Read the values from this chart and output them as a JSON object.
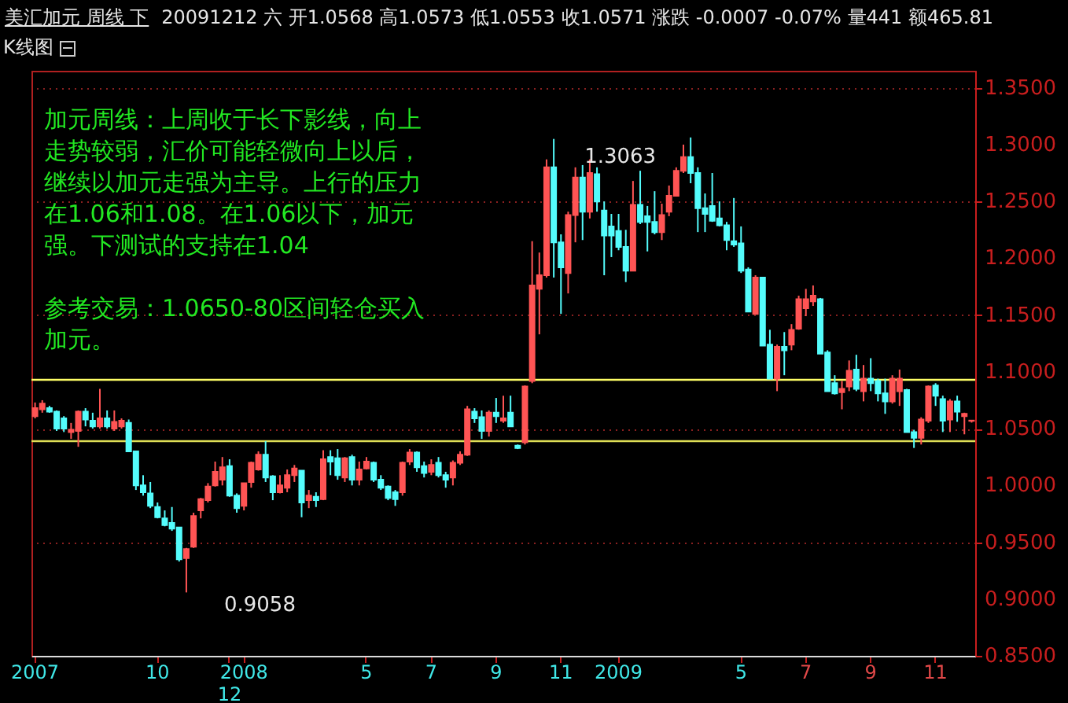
{
  "chart_data": {
    "type": "candlestick",
    "title": "美汇加元 周线 下",
    "subtitle": "20091212 六 开1.0568 高1.0573 低1.0553 收1.0571 涨跌 -0.0007 -0.07% 量441 额465.81",
    "annotations": [
      "K线图",
      "加元周线：上周收于长下影线，向上走势较弱，汇价可能轻微向上以后，继续以加元走强为主导。上行的压力在1.06和1.08。在1.06以下，加元强。下测试的支持在1.04",
      "参考交易：1.0650-80区间轻仓买入加元。",
      "1.3063",
      "0.9058"
    ],
    "categories": [
      "2007",
      null,
      null,
      null,
      null,
      null,
      null,
      null,
      null,
      null,
      null,
      null,
      null,
      null,
      null,
      null,
      null,
      "10",
      null,
      null,
      null,
      null,
      null,
      null,
      null,
      null,
      null,
      "12",
      null,
      "2008",
      null,
      null,
      null,
      null,
      null,
      null,
      null,
      null,
      null,
      null,
      null,
      null,
      null,
      null,
      null,
      null,
      "5",
      null,
      null,
      null,
      null,
      null,
      null,
      null,
      null,
      "7",
      null,
      null,
      null,
      null,
      null,
      null,
      null,
      null,
      "9",
      null,
      null,
      null,
      null,
      null,
      null,
      null,
      null,
      "11",
      null,
      null,
      null,
      null,
      null,
      null,
      null,
      "2009",
      null,
      null,
      null,
      null,
      null,
      null,
      null,
      null,
      null,
      null,
      null,
      null,
      null,
      null,
      null,
      null,
      "5",
      null,
      null,
      null,
      null,
      null,
      null,
      null,
      null,
      "7",
      null,
      null,
      null,
      null,
      null,
      null,
      null,
      null,
      "9",
      null,
      null,
      null,
      null,
      null,
      null,
      null,
      null,
      "11",
      null,
      null,
      null,
      null,
      null
    ],
    "ohlc": [
      [
        1.061,
        1.073,
        1.059,
        1.068
      ],
      [
        1.067,
        1.075,
        1.064,
        1.072
      ],
      [
        1.068,
        1.07,
        1.064,
        1.065
      ],
      [
        1.065,
        1.066,
        1.048,
        1.05
      ],
      [
        1.059,
        1.061,
        1.047,
        1.05
      ],
      [
        1.047,
        1.055,
        1.041,
        1.049
      ],
      [
        1.048,
        1.066,
        1.034,
        1.065
      ],
      [
        1.065,
        1.068,
        1.052,
        1.058
      ],
      [
        1.057,
        1.064,
        1.05,
        1.052
      ],
      [
        1.052,
        1.085,
        1.05,
        1.059
      ],
      [
        1.059,
        1.066,
        1.05,
        1.052
      ],
      [
        1.05,
        1.066,
        1.048,
        1.056
      ],
      [
        1.052,
        1.059,
        1.05,
        1.057
      ],
      [
        1.055,
        1.058,
        1.03,
        1.03
      ],
      [
        1.03,
        1.03,
        0.996,
        1.0
      ],
      [
        1.0,
        1.009,
        0.991,
        0.994
      ],
      [
        0.993,
        1.003,
        0.98,
        0.982
      ],
      [
        0.981,
        0.985,
        0.971,
        0.972
      ],
      [
        0.971,
        0.978,
        0.964,
        0.965
      ],
      [
        0.967,
        0.981,
        0.96,
        0.962
      ],
      [
        0.963,
        0.963,
        0.933,
        0.935
      ],
      [
        0.936,
        0.945,
        0.9058,
        0.944
      ],
      [
        0.946,
        0.976,
        0.945,
        0.973
      ],
      [
        0.978,
        0.989,
        0.971,
        0.988
      ],
      [
        0.987,
        1.002,
        0.985,
        0.999
      ],
      [
        1.0,
        1.021,
        0.999,
        1.012
      ],
      [
        1.005,
        1.025,
        1.0,
        1.016
      ],
      [
        1.017,
        1.023,
        0.99,
        0.991
      ],
      [
        0.991,
        0.993,
        0.976,
        0.98
      ],
      [
        0.982,
        1.002,
        0.978,
        1.002
      ],
      [
        1.003,
        1.021,
        0.998,
        1.02
      ],
      [
        1.014,
        1.03,
        1.013,
        1.027
      ],
      [
        1.027,
        1.039,
        1.003,
        1.007
      ],
      [
        1.008,
        1.009,
        0.987,
        0.994
      ],
      [
        0.994,
        1.009,
        0.993,
        1.0
      ],
      [
        0.998,
        1.014,
        0.994,
        1.009
      ],
      [
        1.009,
        1.018,
        1.003,
        1.015
      ],
      [
        1.013,
        1.013,
        0.972,
        0.985
      ],
      [
        0.987,
        0.996,
        0.98,
        0.991
      ],
      [
        0.99,
        0.994,
        0.981,
        0.987
      ],
      [
        0.988,
        1.031,
        0.987,
        1.023
      ],
      [
        1.025,
        1.031,
        1.009,
        1.021
      ],
      [
        1.024,
        1.032,
        1.005,
        1.009
      ],
      [
        1.007,
        1.025,
        1.003,
        1.024
      ],
      [
        1.025,
        1.027,
        1.0,
        1.005
      ],
      [
        1.005,
        1.021,
        1.0,
        1.014
      ],
      [
        1.015,
        1.025,
        1.014,
        1.021
      ],
      [
        1.02,
        1.021,
        1.003,
        1.005
      ],
      [
        1.005,
        1.009,
        0.996,
        0.998
      ],
      [
        0.999,
        1.0,
        0.987,
        0.989
      ],
      [
        0.994,
        0.996,
        0.982,
        0.988
      ],
      [
        0.994,
        1.021,
        0.991,
        1.02
      ],
      [
        1.021,
        1.032,
        1.018,
        1.029
      ],
      [
        1.029,
        1.03,
        1.012,
        1.016
      ],
      [
        1.017,
        1.021,
        1.007,
        1.011
      ],
      [
        1.012,
        1.023,
        1.009,
        1.018
      ],
      [
        1.02,
        1.025,
        1.007,
        1.009
      ],
      [
        1.009,
        1.012,
        0.998,
        1.005
      ],
      [
        1.007,
        1.022,
        1.0,
        1.02
      ],
      [
        1.02,
        1.03,
        1.018,
        1.027
      ],
      [
        1.027,
        1.07,
        1.026,
        1.067
      ],
      [
        1.065,
        1.068,
        1.055,
        1.059
      ],
      [
        1.06,
        1.066,
        1.041,
        1.048
      ],
      [
        1.048,
        1.066,
        1.043,
        1.064
      ],
      [
        1.064,
        1.077,
        1.055,
        1.061
      ],
      [
        1.057,
        1.079,
        1.055,
        1.059
      ],
      [
        1.064,
        1.079,
        1.052,
        1.052
      ],
      [
        1.035,
        1.036,
        1.032,
        1.033
      ],
      [
        1.038,
        1.088,
        1.036,
        1.087
      ],
      [
        1.092,
        1.215,
        1.09,
        1.176
      ],
      [
        1.173,
        1.205,
        1.133,
        1.185
      ],
      [
        1.185,
        1.287,
        1.183,
        1.28
      ],
      [
        1.28,
        1.305,
        1.183,
        1.214
      ],
      [
        1.214,
        1.221,
        1.151,
        1.192
      ],
      [
        1.187,
        1.241,
        1.169,
        1.238
      ],
      [
        1.238,
        1.28,
        1.214,
        1.271
      ],
      [
        1.271,
        1.282,
        1.216,
        1.241
      ],
      [
        1.241,
        1.287,
        1.235,
        1.275
      ],
      [
        1.274,
        1.28,
        1.241,
        1.25
      ],
      [
        1.242,
        1.25,
        1.185,
        1.22
      ],
      [
        1.228,
        1.239,
        1.201,
        1.22
      ],
      [
        1.224,
        1.239,
        1.207,
        1.21
      ],
      [
        1.21,
        1.225,
        1.179,
        1.189
      ],
      [
        1.189,
        1.268,
        1.189,
        1.247
      ],
      [
        1.247,
        1.277,
        1.23,
        1.232
      ],
      [
        1.237,
        1.246,
        1.206,
        1.232
      ],
      [
        1.232,
        1.259,
        1.221,
        1.223
      ],
      [
        1.223,
        1.248,
        1.216,
        1.238
      ],
      [
        1.241,
        1.264,
        1.237,
        1.255
      ],
      [
        1.255,
        1.28,
        1.255,
        1.277
      ],
      [
        1.277,
        1.3,
        1.275,
        1.289
      ],
      [
        1.289,
        1.3063,
        1.266,
        1.275
      ],
      [
        1.275,
        1.28,
        1.223,
        1.244
      ],
      [
        1.244,
        1.257,
        1.223,
        1.239
      ],
      [
        1.246,
        1.275,
        1.232,
        1.233
      ],
      [
        1.235,
        1.25,
        1.228,
        1.229
      ],
      [
        1.229,
        1.232,
        1.207,
        1.216
      ],
      [
        1.215,
        1.253,
        1.21,
        1.212
      ],
      [
        1.213,
        1.228,
        1.187,
        1.189
      ],
      [
        1.19,
        1.192,
        1.153,
        1.153
      ],
      [
        1.151,
        1.185,
        1.151,
        1.183
      ],
      [
        1.183,
        1.183,
        1.123,
        1.123
      ],
      [
        1.124,
        1.137,
        1.094,
        1.094
      ],
      [
        1.094,
        1.124,
        1.083,
        1.122
      ],
      [
        1.122,
        1.135,
        1.097,
        1.119
      ],
      [
        1.124,
        1.142,
        1.119,
        1.137
      ],
      [
        1.138,
        1.167,
        1.137,
        1.164
      ],
      [
        1.156,
        1.173,
        1.149,
        1.164
      ],
      [
        1.162,
        1.176,
        1.158,
        1.167
      ],
      [
        1.164,
        1.165,
        1.116,
        1.116
      ],
      [
        1.117,
        1.119,
        1.083,
        1.083
      ],
      [
        1.09,
        1.097,
        1.08,
        1.081
      ],
      [
        1.082,
        1.092,
        1.067,
        1.085
      ],
      [
        1.087,
        1.11,
        1.083,
        1.101
      ],
      [
        1.102,
        1.115,
        1.083,
        1.085
      ],
      [
        1.083,
        1.106,
        1.074,
        1.094
      ],
      [
        1.094,
        1.112,
        1.083,
        1.09
      ],
      [
        1.092,
        1.094,
        1.074,
        1.081
      ],
      [
        1.081,
        1.094,
        1.063,
        1.074
      ],
      [
        1.074,
        1.097,
        1.072,
        1.094
      ],
      [
        1.083,
        1.102,
        1.07,
        1.094
      ],
      [
        1.084,
        1.085,
        1.047,
        1.047
      ],
      [
        1.047,
        1.049,
        1.033,
        1.042
      ],
      [
        1.042,
        1.06,
        1.036,
        1.058
      ],
      [
        1.057,
        1.088,
        1.055,
        1.087
      ],
      [
        1.088,
        1.09,
        1.07,
        1.079
      ],
      [
        1.076,
        1.079,
        1.047,
        1.057
      ],
      [
        1.058,
        1.076,
        1.047,
        1.074
      ],
      [
        1.074,
        1.079,
        1.056,
        1.065
      ],
      [
        1.061,
        1.064,
        1.045,
        1.063
      ],
      [
        1.0568,
        1.0573,
        1.0553,
        1.0571
      ]
    ],
    "colors": [
      "#ff5454",
      "#ff5454",
      "#54fcfc",
      "#54fcfc",
      "#54fcfc",
      "#ff5454",
      "#ff5454",
      "#54fcfc",
      "#54fcfc",
      "#ff5454",
      "#54fcfc",
      "#ff5454",
      "#ff5454",
      "#54fcfc",
      "#54fcfc",
      "#54fcfc",
      "#54fcfc",
      "#54fcfc",
      "#54fcfc",
      "#54fcfc",
      "#54fcfc",
      "#ff5454",
      "#ff5454",
      "#ff5454",
      "#ff5454",
      "#ff5454",
      "#ff5454",
      "#54fcfc",
      "#54fcfc",
      "#ff5454",
      "#ff5454",
      "#ff5454",
      "#54fcfc",
      "#54fcfc",
      "#ff5454",
      "#ff5454",
      "#ff5454",
      "#54fcfc",
      "#ff5454",
      "#54fcfc",
      "#ff5454",
      "#54fcfc",
      "#54fcfc",
      "#ff5454",
      "#54fcfc",
      "#ff5454",
      "#ff5454",
      "#54fcfc",
      "#54fcfc",
      "#54fcfc",
      "#54fcfc",
      "#ff5454",
      "#ff5454",
      "#54fcfc",
      "#54fcfc",
      "#ff5454",
      "#54fcfc",
      "#54fcfc",
      "#ff5454",
      "#ff5454",
      "#ff5454",
      "#54fcfc",
      "#54fcfc",
      "#ff5454",
      "#54fcfc",
      "#ff5454",
      "#54fcfc",
      "#54fcfc",
      "#ff5454",
      "#ff5454",
      "#ff5454",
      "#ff5454",
      "#54fcfc",
      "#54fcfc",
      "#ff5454",
      "#ff5454",
      "#54fcfc",
      "#ff5454",
      "#54fcfc",
      "#54fcfc",
      "#54fcfc",
      "#54fcfc",
      "#54fcfc",
      "#ff5454",
      "#54fcfc",
      "#54fcfc",
      "#54fcfc",
      "#ff5454",
      "#ff5454",
      "#ff5454",
      "#ff5454",
      "#54fcfc",
      "#54fcfc",
      "#54fcfc",
      "#54fcfc",
      "#54fcfc",
      "#54fcfc",
      "#54fcfc",
      "#54fcfc",
      "#54fcfc",
      "#ff5454",
      "#54fcfc",
      "#54fcfc",
      "#ff5454",
      "#54fcfc",
      "#ff5454",
      "#ff5454",
      "#ff5454",
      "#ff5454",
      "#54fcfc",
      "#54fcfc",
      "#54fcfc",
      "#ff5454",
      "#ff5454",
      "#54fcfc",
      "#ff5454",
      "#54fcfc",
      "#54fcfc",
      "#54fcfc",
      "#ff5454",
      "#ff5454",
      "#54fcfc",
      "#54fcfc",
      "#ff5454",
      "#ff5454",
      "#54fcfc",
      "#54fcfc",
      "#ff5454",
      "#54fcfc",
      "#ff5454",
      "#ff5454"
    ],
    "ylim": [
      0.85,
      1.365
    ],
    "yticks": [
      {
        "value": 0.85,
        "label": "0.8500"
      },
      {
        "value": 0.9,
        "label": "0.9000"
      },
      {
        "value": 0.95,
        "label": "0.9500"
      },
      {
        "value": 1.0,
        "label": "1.0000"
      },
      {
        "value": 1.05,
        "label": "1.0500"
      },
      {
        "value": 1.1,
        "label": "1.1000"
      },
      {
        "value": 1.15,
        "label": "1.1500"
      },
      {
        "value": 1.2,
        "label": "1.2000"
      },
      {
        "value": 1.25,
        "label": "1.2500"
      },
      {
        "value": 1.3,
        "label": "1.3000"
      },
      {
        "value": 1.35,
        "label": "1.3500"
      }
    ],
    "grid": "y",
    "ref_lines": [
      {
        "axis": "y",
        "value": 1.093,
        "color": "#ffff66"
      },
      {
        "axis": "y",
        "value": 1.039,
        "color": "#dede55"
      }
    ]
  }
}
